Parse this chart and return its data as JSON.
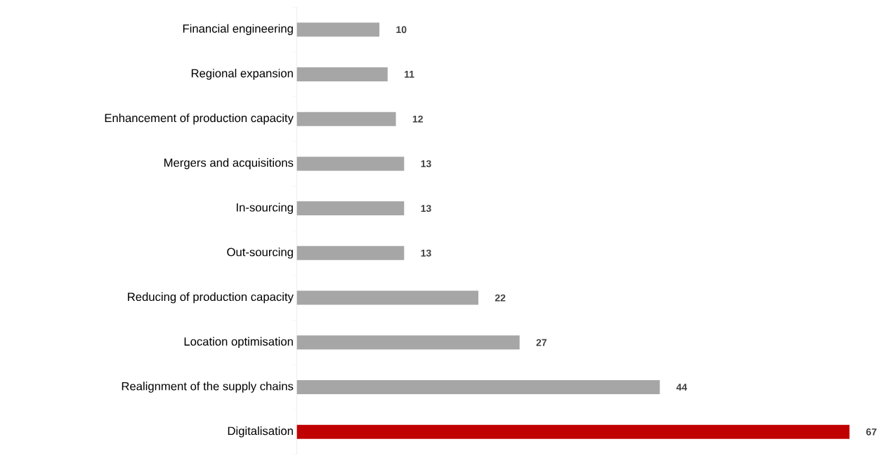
{
  "chart_data": {
    "type": "bar",
    "orientation": "horizontal",
    "categories": [
      "Financial engineering",
      "Regional expansion",
      "Enhancement of production capacity",
      "Mergers and acquisitions",
      "In-sourcing",
      "Out-sourcing",
      "Reducing of production capacity",
      "Location optimisation",
      "Realignment of the supply chains",
      "Digitalisation"
    ],
    "values": [
      10,
      11,
      12,
      13,
      13,
      13,
      22,
      27,
      44,
      67
    ],
    "colors": [
      "#a6a6a6",
      "#a6a6a6",
      "#a6a6a6",
      "#a6a6a6",
      "#a6a6a6",
      "#a6a6a6",
      "#a6a6a6",
      "#a6a6a6",
      "#a6a6a6",
      "#c00000"
    ],
    "data_labels": true
  }
}
